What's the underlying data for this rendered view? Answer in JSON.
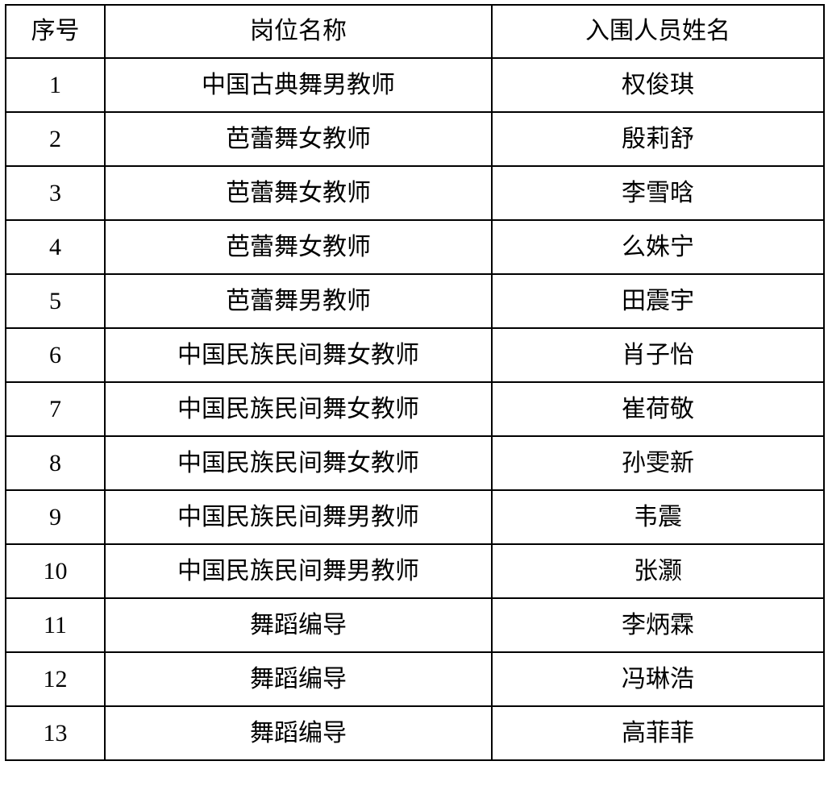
{
  "table": {
    "columns": {
      "no": "序号",
      "position": "岗位名称",
      "name": "入围人员姓名"
    },
    "rows": [
      {
        "no": "1",
        "position": "中国古典舞男教师",
        "name": "权俊琪"
      },
      {
        "no": "2",
        "position": "芭蕾舞女教师",
        "name": "殷莉舒"
      },
      {
        "no": "3",
        "position": "芭蕾舞女教师",
        "name": "李雪晗"
      },
      {
        "no": "4",
        "position": "芭蕾舞女教师",
        "name": "么姝宁"
      },
      {
        "no": "5",
        "position": "芭蕾舞男教师",
        "name": "田震宇"
      },
      {
        "no": "6",
        "position": "中国民族民间舞女教师",
        "name": "肖子怡"
      },
      {
        "no": "7",
        "position": "中国民族民间舞女教师",
        "name": "崔荷敬"
      },
      {
        "no": "8",
        "position": "中国民族民间舞女教师",
        "name": "孙雯新"
      },
      {
        "no": "9",
        "position": "中国民族民间舞男教师",
        "name": "韦震"
      },
      {
        "no": "10",
        "position": "中国民族民间舞男教师",
        "name": "张灏"
      },
      {
        "no": "11",
        "position": "舞蹈编导",
        "name": "李炳霖"
      },
      {
        "no": "12",
        "position": "舞蹈编导",
        "name": "冯琳浩"
      },
      {
        "no": "13",
        "position": "舞蹈编导",
        "name": "高菲菲"
      }
    ],
    "colors": {
      "border": "#000000",
      "text": "#000000",
      "background": "#ffffff"
    }
  }
}
